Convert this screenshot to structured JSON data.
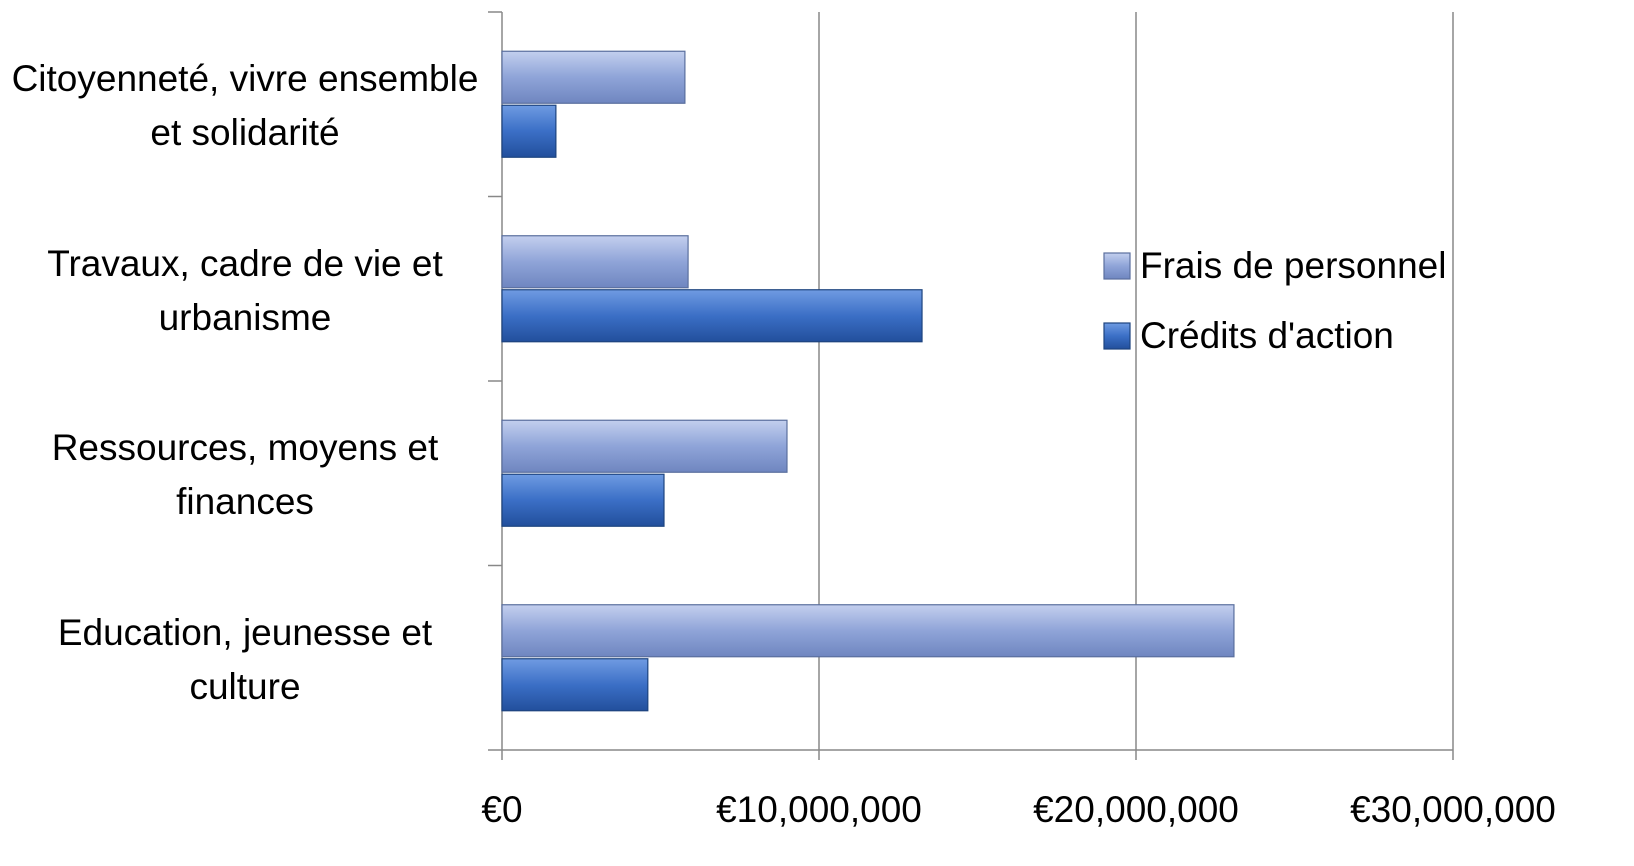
{
  "chart_data": {
    "type": "bar",
    "orientation": "horizontal",
    "categories": [
      "Citoyenneté, vivre ensemble et solidarité",
      "Travaux, cadre de vie et urbanisme",
      "Ressources, moyens et finances",
      "Education, jeunesse et culture"
    ],
    "series": [
      {
        "name": "Frais de personnel",
        "color": "#8fa4d8",
        "values": [
          5770000,
          5870000,
          8990000,
          23090000
        ]
      },
      {
        "name": "Crédits d'action",
        "color": "#3b6fc6",
        "values": [
          1700000,
          13250000,
          5110000,
          4600000
        ]
      }
    ],
    "xlim": [
      0,
      30000000
    ],
    "xticks": [
      {
        "value": 0,
        "label": "€0"
      },
      {
        "value": 10000000,
        "label": "€10,000,000"
      },
      {
        "value": 20000000,
        "label": "€20,000,000"
      },
      {
        "value": 30000000,
        "label": "€30,000,000"
      }
    ],
    "grid": true,
    "legend": "right"
  }
}
